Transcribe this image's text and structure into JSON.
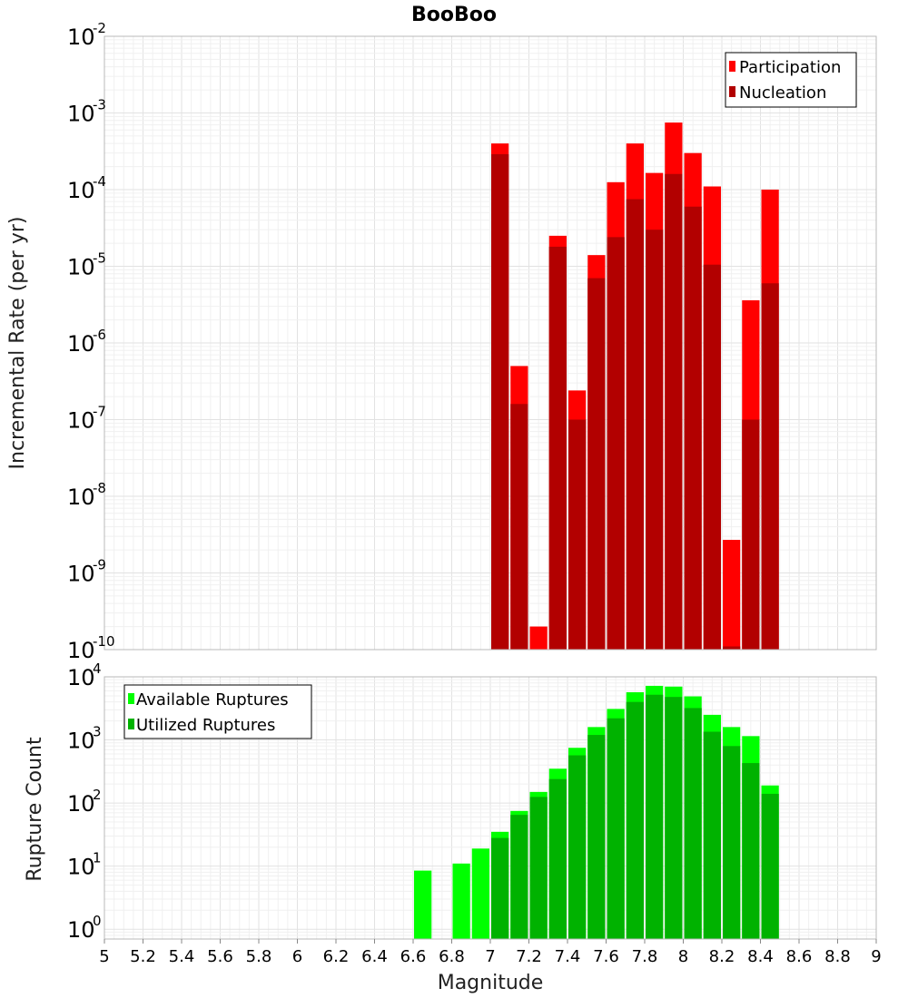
{
  "chart_data": [
    {
      "type": "bar",
      "title": "BooBoo",
      "ylabel": "Incremental Rate (per yr)",
      "xlabel": "",
      "xlim": [
        5,
        9
      ],
      "ylim": [
        1e-10,
        0.01
      ],
      "yscale": "log",
      "grid": true,
      "legend_position": "top-right",
      "bin_width": 0.1,
      "x": [
        7.05,
        7.15,
        7.25,
        7.35,
        7.45,
        7.55,
        7.65,
        7.75,
        7.85,
        7.95,
        8.05,
        8.15,
        8.25,
        8.35,
        8.45
      ],
      "series": [
        {
          "name": "Participation",
          "color": "#ff0000",
          "values": [
            0.0004,
            5e-07,
            2e-10,
            2.5e-05,
            2.4e-07,
            1.4e-05,
            0.000125,
            0.0004,
            0.000165,
            0.00075,
            0.0003,
            0.00011,
            2.7e-09,
            3.6e-06,
            0.0001
          ]
        },
        {
          "name": "Nucleation",
          "color": "#b20000",
          "values": [
            0.00029,
            1.6e-07,
            null,
            1.8e-05,
            1e-07,
            7e-06,
            2.4e-05,
            7.5e-05,
            3e-05,
            0.00016,
            6e-05,
            1.05e-05,
            1.1e-10,
            1e-07,
            6e-06
          ]
        }
      ],
      "ytick_base": "10",
      "yticks_exponents": [
        "-10",
        "-9",
        "-8",
        "-7",
        "-6",
        "-5",
        "-4",
        "-3",
        "-2"
      ]
    },
    {
      "type": "bar",
      "title": "",
      "ylabel": "Rupture Count",
      "xlabel": "Magnitude",
      "xlim": [
        5,
        9
      ],
      "ylim": [
        0.7,
        10000
      ],
      "yscale": "log",
      "grid": true,
      "legend_position": "top-left",
      "bin_width": 0.1,
      "x": [
        6.65,
        6.85,
        6.95,
        7.05,
        7.15,
        7.25,
        7.35,
        7.45,
        7.55,
        7.65,
        7.75,
        7.85,
        7.95,
        8.05,
        8.15,
        8.25,
        8.35,
        8.45
      ],
      "series": [
        {
          "name": "Available Ruptures",
          "color": "#00ff00",
          "values": [
            8.5,
            11,
            19,
            35,
            75,
            150,
            350,
            750,
            1600,
            3100,
            5700,
            7200,
            7000,
            4900,
            2500,
            1600,
            1150,
            190
          ]
        },
        {
          "name": "Utilized Ruptures",
          "color": "#00b200",
          "values": [
            null,
            null,
            null,
            28,
            65,
            125,
            240,
            570,
            1200,
            2200,
            4000,
            5200,
            4800,
            3200,
            1350,
            800,
            430,
            140
          ]
        }
      ],
      "ytick_base": "10",
      "yticks_exponents": [
        "0",
        "1",
        "2",
        "3",
        "4"
      ],
      "xticks": [
        "5",
        "5.2",
        "5.4",
        "5.6",
        "5.8",
        "6",
        "6.2",
        "6.4",
        "6.6",
        "6.8",
        "7",
        "7.2",
        "7.4",
        "7.6",
        "7.8",
        "8",
        "8.2",
        "8.4",
        "8.6",
        "8.8",
        "9"
      ]
    }
  ]
}
